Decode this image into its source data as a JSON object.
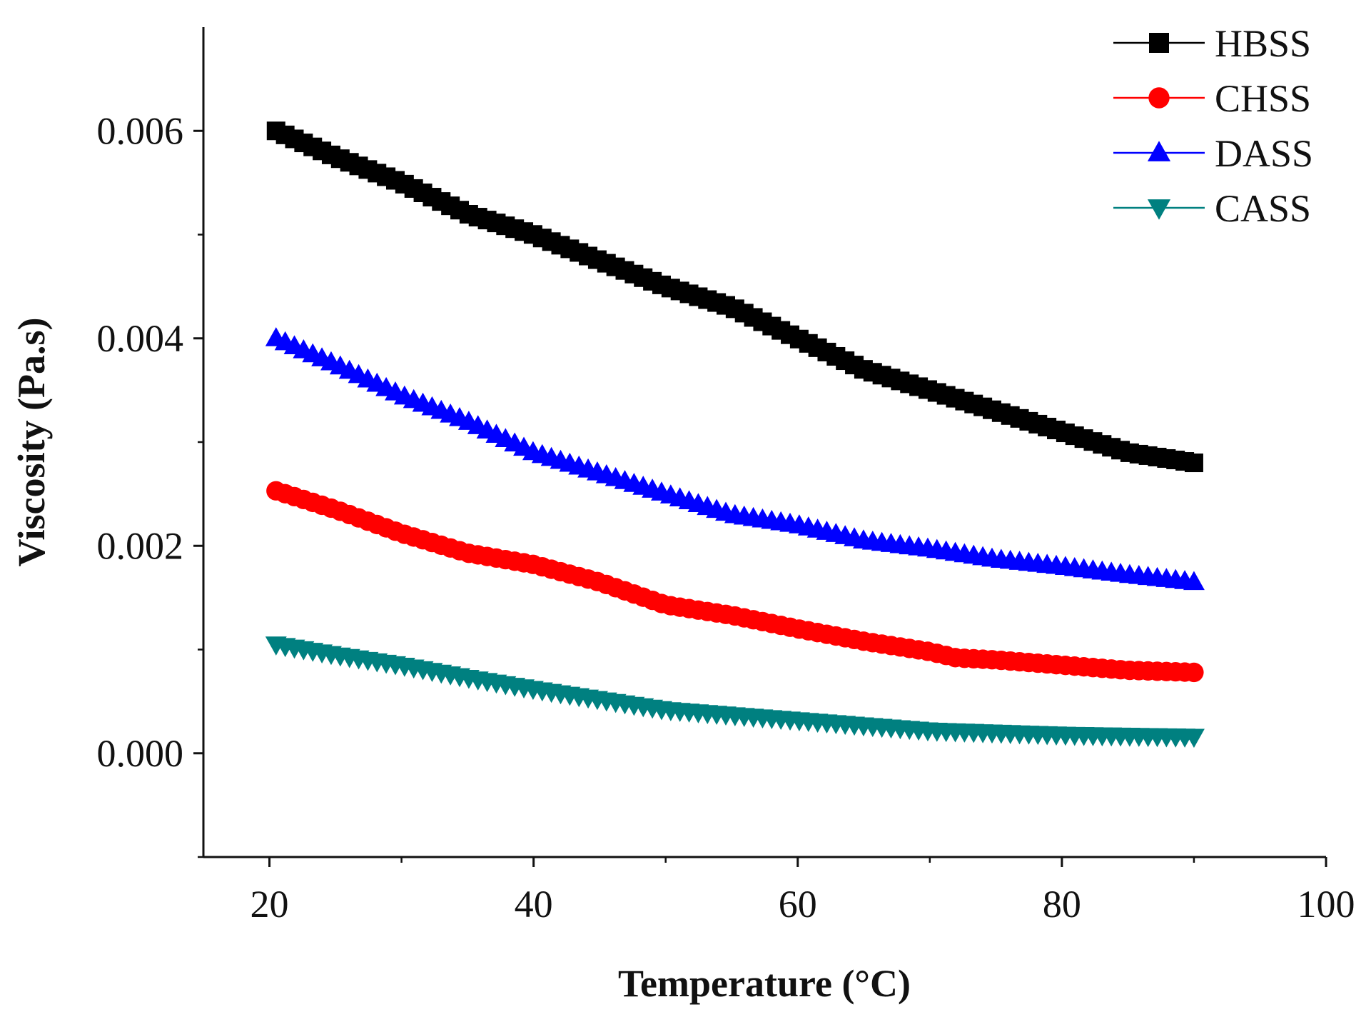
{
  "chart_data": {
    "type": "line",
    "title": "",
    "xlabel": "Temperature (°C)",
    "ylabel": "Viscosity (Pa.s)",
    "xlim": [
      15,
      100
    ],
    "ylim": [
      -0.001,
      0.007
    ],
    "xticks": [
      20,
      40,
      60,
      80,
      100
    ],
    "xtick_labels": [
      "20",
      "40",
      "60",
      "80",
      "100"
    ],
    "yticks": [
      0.0,
      0.002,
      0.004,
      0.006
    ],
    "ytick_labels": [
      "0.000",
      "0.002",
      "0.004",
      "0.006"
    ],
    "grid": false,
    "legend_position": "top-right",
    "series": [
      {
        "name": "HBSS",
        "color": "#000000",
        "marker": "square",
        "x": [
          20.5,
          25,
          30,
          35,
          40,
          45,
          50,
          55,
          60,
          65,
          70,
          75,
          80,
          85,
          90
        ],
        "y": [
          0.006,
          0.00575,
          0.0055,
          0.0052,
          0.005,
          0.00475,
          0.0045,
          0.0043,
          0.004,
          0.0037,
          0.0035,
          0.0033,
          0.0031,
          0.0029,
          0.0028
        ]
      },
      {
        "name": "CHSS",
        "color": "#ff0000",
        "marker": "circle",
        "x": [
          20.5,
          25,
          30,
          35,
          40,
          45,
          50,
          55,
          60,
          65,
          70,
          72,
          75,
          80,
          85,
          90
        ],
        "y": [
          0.00253,
          0.00235,
          0.00212,
          0.00193,
          0.00182,
          0.00165,
          0.00143,
          0.00133,
          0.0012,
          0.00108,
          0.00098,
          0.00092,
          0.0009,
          0.00085,
          0.0008,
          0.00078
        ]
      },
      {
        "name": "DASS",
        "color": "#0000ff",
        "marker": "triangle-up",
        "x": [
          20.5,
          25,
          30,
          35,
          40,
          45,
          50,
          55,
          60,
          65,
          70,
          75,
          80,
          85,
          90
        ],
        "y": [
          0.004,
          0.00375,
          0.00345,
          0.0032,
          0.0029,
          0.0027,
          0.0025,
          0.0023,
          0.0022,
          0.00205,
          0.00197,
          0.00187,
          0.0018,
          0.00172,
          0.00165
        ]
      },
      {
        "name": "CASS",
        "color": "#008080",
        "marker": "triangle-down",
        "x": [
          20.5,
          25,
          30,
          35,
          40,
          45,
          50,
          55,
          60,
          65,
          70,
          75,
          80,
          85,
          90
        ],
        "y": [
          0.00105,
          0.00095,
          0.00085,
          0.00073,
          0.00062,
          0.00052,
          0.00042,
          0.00037,
          0.00032,
          0.00027,
          0.00022,
          0.0002,
          0.00018,
          0.00017,
          0.00016
        ]
      }
    ]
  }
}
